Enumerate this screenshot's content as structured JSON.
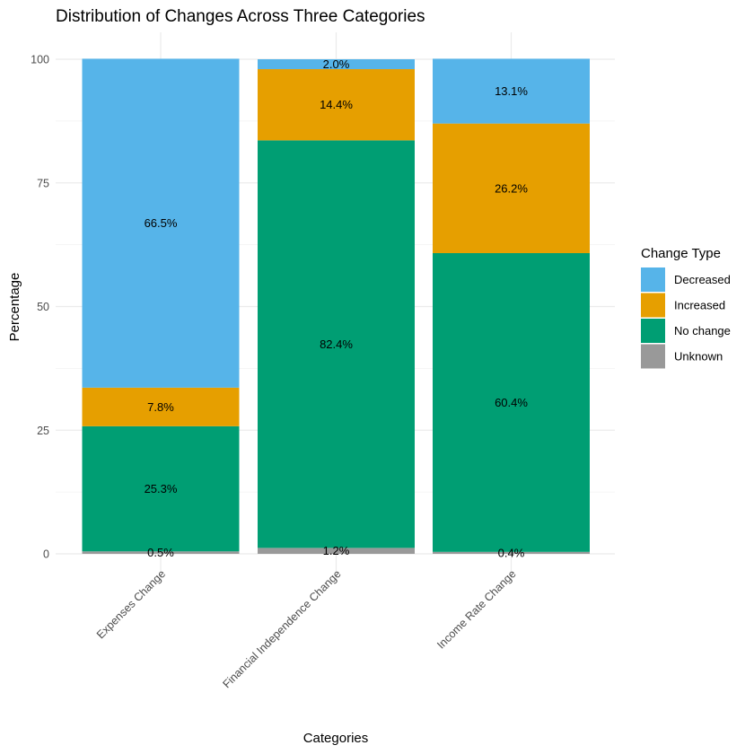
{
  "chart_data": {
    "type": "bar",
    "stacked": true,
    "title": "Distribution of Changes Across Three Categories",
    "xlabel": "Categories",
    "ylabel": "Percentage",
    "ylim": [
      0,
      100
    ],
    "yticks": [
      0,
      25,
      50,
      75,
      100
    ],
    "grid": true,
    "categories": [
      "Expenses Change",
      "Financial Independence Change",
      "Income Rate Change"
    ],
    "legend": {
      "title": "Change Type",
      "placement": "right"
    },
    "series": [
      {
        "name": "Unknown",
        "color": "#999999",
        "values": [
          0.5,
          1.2,
          0.4
        ],
        "labels": [
          "0.5%",
          "1.2%",
          "0.4%"
        ]
      },
      {
        "name": "No change",
        "color": "#009E73",
        "values": [
          25.3,
          82.4,
          60.4
        ],
        "labels": [
          "25.3%",
          "82.4%",
          "60.4%"
        ]
      },
      {
        "name": "Increased",
        "color": "#E69F00",
        "values": [
          7.8,
          14.4,
          26.2
        ],
        "labels": [
          "7.8%",
          "14.4%",
          "26.2%"
        ]
      },
      {
        "name": "Decreased",
        "color": "#56B4E9",
        "values": [
          66.5,
          2.0,
          13.1
        ],
        "labels": [
          "66.5%",
          "2.0%",
          "13.1%"
        ]
      }
    ],
    "legend_order": [
      "Decreased",
      "Increased",
      "No change",
      "Unknown"
    ]
  }
}
